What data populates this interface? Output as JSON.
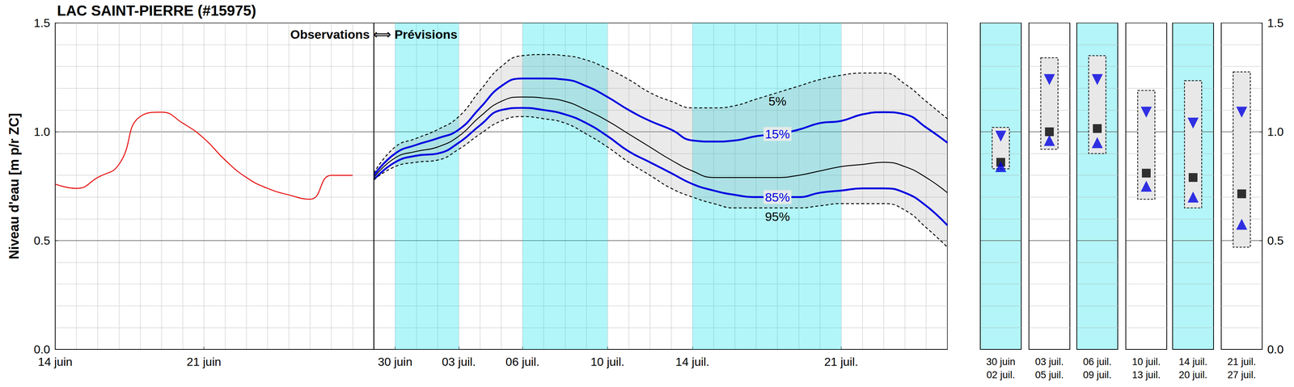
{
  "chart_data": {
    "type": "line",
    "title": "LAC SAINT-PIERRE (#15975)",
    "y_label": "Niveau d'eau [m p/r ZC]",
    "annotation": "Observations ⟺ Prévisions",
    "categories": [
      "14 juin",
      null,
      null,
      null,
      null,
      null,
      null,
      "21 juin",
      null,
      null,
      null,
      null,
      null,
      null,
      null,
      null,
      "30 juin",
      null,
      null,
      "03 juil.",
      null,
      null,
      "06 juil.",
      null,
      null,
      null,
      "10 juil.",
      null,
      null,
      null,
      "14 juil.",
      null,
      null,
      null,
      null,
      null,
      null,
      "21 juil.",
      null,
      null,
      null,
      null,
      null
    ],
    "ylim": [
      0,
      1.5
    ],
    "yticks": [
      {
        "value": 0,
        "label": "0.0"
      },
      0.5,
      {
        "value": 1,
        "label": "1.0"
      },
      1.5
    ],
    "grid": true,
    "shaded_ranges": [
      [
        16,
        19
      ],
      [
        22,
        26
      ],
      [
        30,
        37
      ]
    ],
    "series": [
      {
        "color": "#e60000",
        "line_style": "solid",
        "values": [
          0.76,
          0.74,
          0.79,
          0.85,
          1.07,
          1.09,
          1.04,
          0.97,
          0.87,
          0.79,
          0.74,
          0.71,
          0.69,
          0.8,
          0.8,
          null,
          null,
          null,
          null,
          null,
          null,
          null,
          null,
          null,
          null,
          null,
          null,
          null,
          null,
          null,
          null,
          null,
          null,
          null,
          null,
          null,
          null,
          null,
          null,
          null,
          null,
          null,
          null
        ]
      },
      {
        "name": "5%",
        "color": "#000000",
        "line_style": "dashed",
        "values": [
          null,
          null,
          null,
          null,
          null,
          null,
          null,
          null,
          null,
          null,
          null,
          null,
          null,
          null,
          null,
          0.81,
          0.93,
          0.97,
          1.01,
          1.07,
          1.19,
          1.3,
          1.35,
          1.355,
          1.35,
          1.33,
          1.29,
          1.24,
          1.18,
          1.14,
          1.11,
          1.11,
          1.12,
          1.15,
          1.18,
          1.21,
          1.24,
          1.26,
          1.27,
          1.27,
          1.22,
          1.14,
          1.06
        ]
      },
      {
        "name": "15%",
        "color": "#0000e0",
        "line_style": "solid",
        "values": [
          null,
          null,
          null,
          null,
          null,
          null,
          null,
          null,
          null,
          null,
          null,
          null,
          null,
          null,
          null,
          0.8,
          0.9,
          0.94,
          0.97,
          1.01,
          1.11,
          1.21,
          1.245,
          1.245,
          1.24,
          1.21,
          1.16,
          1.1,
          1.05,
          1.01,
          0.96,
          0.955,
          0.96,
          0.98,
          0.99,
          1.01,
          1.04,
          1.05,
          1.08,
          1.09,
          1.08,
          1.02,
          0.95
        ]
      },
      {
        "color": "#000000",
        "line_style": "solid",
        "values": [
          null,
          null,
          null,
          null,
          null,
          null,
          null,
          null,
          null,
          null,
          null,
          null,
          null,
          null,
          null,
          0.79,
          0.88,
          0.91,
          0.93,
          0.98,
          1.07,
          1.14,
          1.16,
          1.155,
          1.14,
          1.1,
          1.05,
          0.99,
          0.93,
          0.87,
          0.82,
          0.79,
          0.79,
          0.79,
          0.79,
          0.8,
          0.82,
          0.84,
          0.85,
          0.86,
          0.84,
          0.79,
          0.72
        ]
      },
      {
        "name": "85%",
        "color": "#0000e0",
        "line_style": "solid",
        "values": [
          null,
          null,
          null,
          null,
          null,
          null,
          null,
          null,
          null,
          null,
          null,
          null,
          null,
          null,
          null,
          0.78,
          0.86,
          0.89,
          0.9,
          0.95,
          1.03,
          1.1,
          1.11,
          1.1,
          1.08,
          1.04,
          0.98,
          0.91,
          0.86,
          0.81,
          0.76,
          0.73,
          0.71,
          0.7,
          0.7,
          0.7,
          0.72,
          0.73,
          0.74,
          0.74,
          0.72,
          0.66,
          0.57
        ]
      },
      {
        "name": "95%",
        "color": "#000000",
        "line_style": "dashed",
        "values": [
          null,
          null,
          null,
          null,
          null,
          null,
          null,
          null,
          null,
          null,
          null,
          null,
          null,
          null,
          null,
          0.78,
          0.84,
          0.86,
          0.87,
          0.92,
          0.99,
          1.05,
          1.07,
          1.06,
          1.04,
          0.99,
          0.93,
          0.86,
          0.8,
          0.74,
          0.7,
          0.67,
          0.65,
          0.65,
          0.65,
          0.65,
          0.66,
          0.67,
          0.67,
          0.67,
          0.64,
          0.56,
          0.47
        ]
      }
    ],
    "summary": [
      {
        "period": [
          "30 juin",
          "02 juil."
        ],
        "shaded": true,
        "range": [
          0.83,
          1.02
        ],
        "median": 0.86,
        "high": 0.98,
        "low": 0.84
      },
      {
        "period": [
          "03 juil.",
          "05 juil."
        ],
        "shaded": false,
        "range": [
          0.92,
          1.34
        ],
        "median": 1.0,
        "high": 1.24,
        "low": 0.96
      },
      {
        "period": [
          "06 juil.",
          "09 juil."
        ],
        "shaded": true,
        "range": [
          0.9,
          1.35
        ],
        "median": 1.015,
        "high": 1.24,
        "low": 0.95
      },
      {
        "period": [
          "10 juil.",
          "13 juil."
        ],
        "shaded": false,
        "range": [
          0.69,
          1.19
        ],
        "median": 0.81,
        "high": 1.09,
        "low": 0.75
      },
      {
        "period": [
          "14 juil.",
          "20 juil."
        ],
        "shaded": true,
        "range": [
          0.65,
          1.235
        ],
        "median": 0.79,
        "high": 1.04,
        "low": 0.7
      },
      {
        "period": [
          "21 juil.",
          "27 juil."
        ],
        "shaded": false,
        "range": [
          0.47,
          1.275
        ],
        "median": 0.715,
        "high": 1.09,
        "low": 0.575
      }
    ]
  }
}
